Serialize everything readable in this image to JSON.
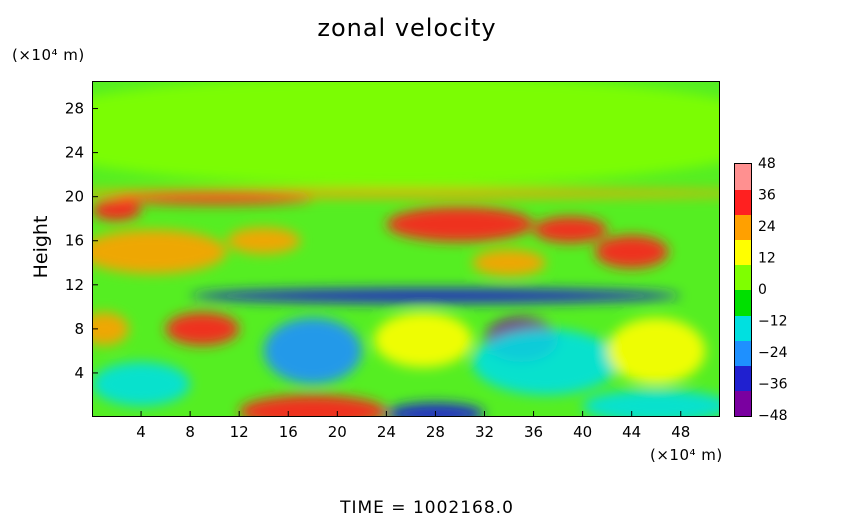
{
  "title": "zonal velocity",
  "y_unit": "(×10⁴ m)",
  "x_unit": "(×10⁴ m)",
  "ylabel": "Height",
  "time_label": "TIME  =  1002168.0",
  "chart_data": {
    "type": "heatmap",
    "title": "zonal velocity",
    "xlabel": "",
    "ylabel": "Height",
    "x_unit": "(×10⁴ m)",
    "y_unit": "(×10⁴ m)",
    "xlim": [
      0,
      51.2
    ],
    "ylim": [
      0,
      30.5
    ],
    "x_ticks": [
      4,
      8,
      12,
      16,
      20,
      24,
      28,
      32,
      36,
      40,
      44,
      48
    ],
    "y_ticks": [
      4,
      8,
      12,
      16,
      20,
      24,
      28
    ],
    "colorbar": {
      "range": [
        -48,
        48
      ],
      "ticks": [
        48,
        36,
        24,
        12,
        0,
        -12,
        -24,
        -36,
        -48
      ],
      "colors": [
        "#7a00a0",
        "#2020d0",
        "#1e90ff",
        "#00e0e0",
        "#00e000",
        "#7fff00",
        "#ffff00",
        "#ffa000",
        "#ff2020",
        "#ff9090"
      ]
    },
    "regions": [
      {
        "x": 25,
        "y": 26,
        "rx": 32,
        "ry": 5,
        "v": 2
      },
      {
        "x": 25,
        "y": 20.3,
        "rx": 32,
        "ry": 0.4,
        "v": 20
      },
      {
        "x": 10,
        "y": 19.8,
        "rx": 8,
        "ry": 0.5,
        "v": 30
      },
      {
        "x": 2,
        "y": 18.8,
        "rx": 2,
        "ry": 1,
        "v": 34
      },
      {
        "x": 30,
        "y": 17.5,
        "rx": 6,
        "ry": 1.6,
        "v": 38
      },
      {
        "x": 39,
        "y": 17,
        "rx": 3,
        "ry": 1.2,
        "v": 36
      },
      {
        "x": 14,
        "y": 16,
        "rx": 3,
        "ry": 1.2,
        "v": 26
      },
      {
        "x": 5,
        "y": 15,
        "rx": 6,
        "ry": 2,
        "v": 22
      },
      {
        "x": 44,
        "y": 15,
        "rx": 3,
        "ry": 1.5,
        "v": 32
      },
      {
        "x": 34,
        "y": 14,
        "rx": 3,
        "ry": 1.2,
        "v": 20
      },
      {
        "x": 28,
        "y": 11,
        "rx": 20,
        "ry": 0.7,
        "v": -34
      },
      {
        "x": 9,
        "y": 8,
        "rx": 3,
        "ry": 1.5,
        "v": 38
      },
      {
        "x": 1,
        "y": 8,
        "rx": 2,
        "ry": 1.5,
        "v": 26
      },
      {
        "x": 18,
        "y": 6,
        "rx": 4,
        "ry": 3,
        "v": -28
      },
      {
        "x": 35,
        "y": 7,
        "rx": 3,
        "ry": 2,
        "v": -40
      },
      {
        "x": 37,
        "y": 5,
        "rx": 6,
        "ry": 3,
        "v": -16
      },
      {
        "x": 27,
        "y": 7,
        "rx": 4,
        "ry": 2.5,
        "v": 18
      },
      {
        "x": 46,
        "y": 6,
        "rx": 4,
        "ry": 3,
        "v": 12
      },
      {
        "x": 4,
        "y": 3,
        "rx": 4,
        "ry": 2,
        "v": -16
      },
      {
        "x": 18,
        "y": 0.5,
        "rx": 6,
        "ry": 1.5,
        "v": 34
      },
      {
        "x": 28,
        "y": 0.3,
        "rx": 4,
        "ry": 1,
        "v": -36
      },
      {
        "x": 46,
        "y": 1,
        "rx": 6,
        "ry": 1.5,
        "v": -14
      }
    ]
  }
}
